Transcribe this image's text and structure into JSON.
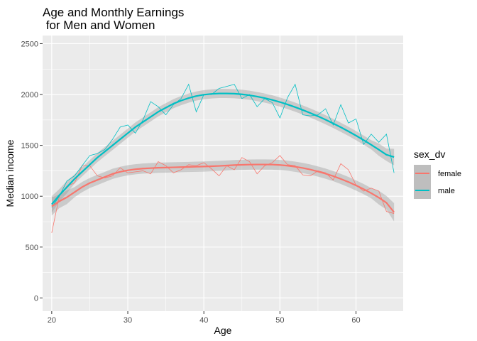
{
  "chart_data": {
    "type": "line",
    "title_line1": "Age and Monthly Earnings",
    "title_line2": " for Men and Women",
    "xlabel": "Age",
    "ylabel": "Median income",
    "xlim": [
      18.8,
      66.2
    ],
    "ylim": [
      -130,
      2580
    ],
    "x_ticks": [
      20,
      30,
      40,
      50,
      60
    ],
    "x_tick_labels": [
      "20",
      "30",
      "40",
      "50",
      "60"
    ],
    "y_ticks": [
      0,
      500,
      1000,
      1500,
      2000,
      2500
    ],
    "y_tick_labels": [
      "0",
      "500",
      "1000",
      "1500",
      "2000",
      "2500"
    ],
    "grid": true,
    "legend": {
      "title": "sex_dv",
      "position": "right",
      "entries": [
        "female",
        "male"
      ]
    },
    "x": [
      20,
      21,
      22,
      23,
      24,
      25,
      26,
      27,
      28,
      29,
      30,
      31,
      32,
      33,
      34,
      35,
      36,
      37,
      38,
      39,
      40,
      41,
      42,
      43,
      44,
      45,
      46,
      47,
      48,
      49,
      50,
      51,
      52,
      53,
      54,
      55,
      56,
      57,
      58,
      59,
      60,
      61,
      62,
      63,
      64,
      65
    ],
    "series": [
      {
        "name": "female",
        "color": "#F8766D",
        "values": [
          640,
          1000,
          1100,
          1130,
          1300,
          1300,
          1200,
          1180,
          1200,
          1280,
          1230,
          1240,
          1250,
          1220,
          1340,
          1300,
          1230,
          1260,
          1310,
          1300,
          1330,
          1270,
          1200,
          1300,
          1260,
          1380,
          1340,
          1220,
          1300,
          1330,
          1400,
          1310,
          1300,
          1210,
          1200,
          1250,
          1230,
          1160,
          1320,
          1260,
          1110,
          1050,
          1080,
          1050,
          850,
          830
        ],
        "smooth": [
          900,
          950,
          990,
          1040,
          1090,
          1130,
          1160,
          1190,
          1220,
          1240,
          1255,
          1265,
          1272,
          1276,
          1280,
          1282,
          1284,
          1286,
          1288,
          1290,
          1292,
          1295,
          1298,
          1302,
          1306,
          1309,
          1311,
          1312,
          1312,
          1311,
          1307,
          1300,
          1290,
          1278,
          1262,
          1243,
          1222,
          1198,
          1170,
          1140,
          1106,
          1070,
          1030,
          986,
          936,
          842
        ]
      },
      {
        "name": "male",
        "color": "#00BFC4",
        "values": [
          890,
          1000,
          1150,
          1200,
          1300,
          1400,
          1420,
          1460,
          1560,
          1680,
          1700,
          1620,
          1750,
          1930,
          1880,
          1800,
          1900,
          1960,
          2100,
          1830,
          2000,
          2000,
          2060,
          2080,
          2100,
          1960,
          2000,
          1880,
          1960,
          1920,
          1770,
          1970,
          2100,
          1800,
          1790,
          1800,
          1860,
          1700,
          1900,
          1720,
          1760,
          1510,
          1610,
          1530,
          1610,
          1230
        ],
        "smooth": [
          920,
          1010,
          1090,
          1170,
          1240,
          1310,
          1380,
          1440,
          1500,
          1560,
          1620,
          1680,
          1730,
          1780,
          1830,
          1870,
          1910,
          1940,
          1965,
          1985,
          1998,
          2006,
          2010,
          2010,
          2008,
          2002,
          1993,
          1980,
          1965,
          1947,
          1926,
          1902,
          1876,
          1848,
          1818,
          1786,
          1752,
          1716,
          1678,
          1638,
          1596,
          1552,
          1506,
          1458,
          1408,
          1385
        ],
        "band_width": 45
      }
    ]
  }
}
